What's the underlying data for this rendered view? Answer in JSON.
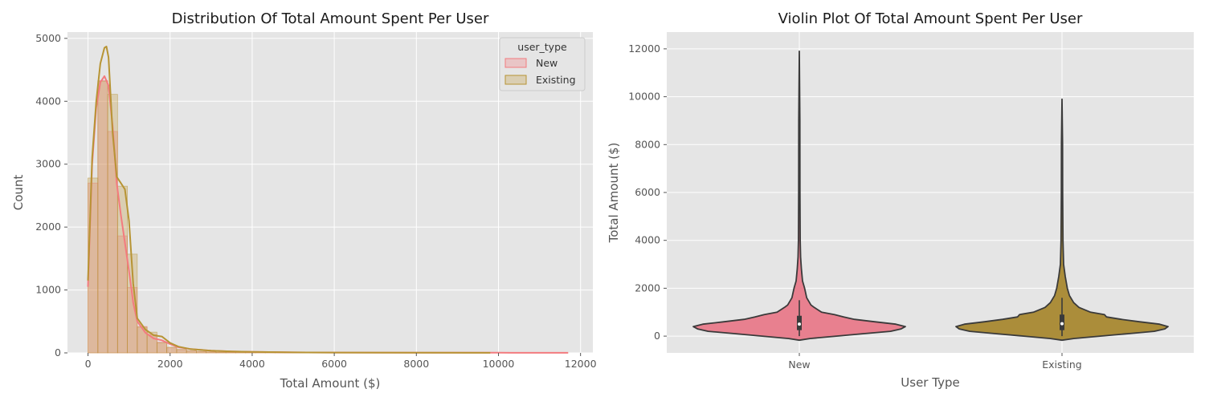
{
  "chart_data": [
    {
      "type": "histogram",
      "title": "Distribution Of Total Amount Spent Per User",
      "xlabel": "Total Amount ($)",
      "ylabel": "Count",
      "xlim": [
        -500,
        12300
      ],
      "ylim": [
        0,
        5100
      ],
      "xticks": [
        0,
        2000,
        4000,
        6000,
        8000,
        10000,
        12000
      ],
      "yticks": [
        0,
        1000,
        2000,
        3000,
        4000,
        5000
      ],
      "grid": true,
      "legend": {
        "title": "user_type",
        "position": "top-right",
        "entries": [
          "New",
          "Existing"
        ]
      },
      "bin_width": 240,
      "series": [
        {
          "name": "New",
          "color": "#f37b7f",
          "hist": [
            2700,
            4330,
            3520,
            1860,
            1040,
            420,
            290,
            170,
            80,
            50,
            30,
            20,
            15,
            10,
            8,
            6,
            5,
            4,
            3,
            3,
            2,
            2
          ],
          "kde": [
            [
              0,
              1050
            ],
            [
              100,
              3000
            ],
            [
              200,
              3900
            ],
            [
              300,
              4300
            ],
            [
              400,
              4400
            ],
            [
              500,
              4250
            ],
            [
              600,
              3600
            ],
            [
              700,
              2700
            ],
            [
              800,
              2200
            ],
            [
              900,
              1750
            ],
            [
              1000,
              1300
            ],
            [
              1100,
              800
            ],
            [
              1200,
              500
            ],
            [
              1400,
              320
            ],
            [
              1600,
              230
            ],
            [
              1800,
              200
            ],
            [
              2000,
              140
            ],
            [
              2200,
              90
            ],
            [
              2500,
              60
            ],
            [
              3000,
              35
            ],
            [
              3500,
              22
            ],
            [
              4000,
              15
            ],
            [
              5000,
              8
            ],
            [
              6000,
              5
            ],
            [
              8000,
              3
            ],
            [
              10000,
              2
            ],
            [
              11700,
              1
            ]
          ]
        },
        {
          "name": "Existing",
          "color": "#b79434",
          "hist": [
            2780,
            4320,
            4110,
            2650,
            1570,
            410,
            330,
            160,
            90,
            55,
            35,
            22,
            15,
            10,
            8,
            6,
            5,
            4,
            3,
            2,
            2,
            1
          ],
          "kde": [
            [
              0,
              1150
            ],
            [
              100,
              3100
            ],
            [
              200,
              4000
            ],
            [
              300,
              4600
            ],
            [
              400,
              4850
            ],
            [
              450,
              4870
            ],
            [
              500,
              4700
            ],
            [
              600,
              3500
            ],
            [
              700,
              2800
            ],
            [
              800,
              2700
            ],
            [
              900,
              2600
            ],
            [
              1000,
              2100
            ],
            [
              1100,
              1100
            ],
            [
              1200,
              550
            ],
            [
              1400,
              370
            ],
            [
              1600,
              280
            ],
            [
              1800,
              260
            ],
            [
              2000,
              160
            ],
            [
              2200,
              100
            ],
            [
              2500,
              60
            ],
            [
              3000,
              35
            ],
            [
              3500,
              22
            ],
            [
              4000,
              15
            ],
            [
              5000,
              8
            ],
            [
              6000,
              5
            ],
            [
              8000,
              3
            ],
            [
              9800,
              1
            ]
          ]
        }
      ]
    },
    {
      "type": "violin",
      "title": "Violin Plot Of Total Amount Spent Per User",
      "xlabel": "User Type",
      "ylabel": "Total Amount ($)",
      "categories": [
        "New",
        "Existing"
      ],
      "ylim": [
        -700,
        12700
      ],
      "yticks": [
        0,
        2000,
        4000,
        6000,
        8000,
        10000,
        12000
      ],
      "grid": true,
      "series": [
        {
          "name": "New",
          "color": "#e8808f",
          "profile": [
            [
              -170,
              0.0
            ],
            [
              -100,
              0.1
            ],
            [
              0,
              0.35
            ],
            [
              100,
              0.6
            ],
            [
              200,
              0.86
            ],
            [
              300,
              0.96
            ],
            [
              400,
              1.0
            ],
            [
              500,
              0.91
            ],
            [
              600,
              0.71
            ],
            [
              700,
              0.52
            ],
            [
              800,
              0.42
            ],
            [
              900,
              0.33
            ],
            [
              1000,
              0.21
            ],
            [
              1200,
              0.14
            ],
            [
              1300,
              0.11
            ],
            [
              1600,
              0.07
            ],
            [
              2000,
              0.05
            ],
            [
              2300,
              0.03
            ],
            [
              2800,
              0.02
            ],
            [
              3300,
              0.012
            ],
            [
              4000,
              0.008
            ],
            [
              6000,
              0.006
            ],
            [
              9000,
              0.005
            ],
            [
              11900,
              0.0
            ]
          ],
          "box": {
            "q1": 250,
            "median": 500,
            "q3": 850,
            "whisker_low": 0,
            "whisker_high": 1500
          }
        },
        {
          "name": "Existing",
          "color": "#ab8d3a",
          "profile": [
            [
              -170,
              0.0
            ],
            [
              -100,
              0.11
            ],
            [
              0,
              0.36
            ],
            [
              100,
              0.62
            ],
            [
              200,
              0.87
            ],
            [
              300,
              0.97
            ],
            [
              400,
              1.0
            ],
            [
              500,
              0.92
            ],
            [
              600,
              0.73
            ],
            [
              700,
              0.56
            ],
            [
              800,
              0.42
            ],
            [
              900,
              0.4
            ],
            [
              1000,
              0.27
            ],
            [
              1200,
              0.16
            ],
            [
              1400,
              0.11
            ],
            [
              1700,
              0.07
            ],
            [
              2000,
              0.05
            ],
            [
              2500,
              0.03
            ],
            [
              3000,
              0.015
            ],
            [
              4000,
              0.009
            ],
            [
              6000,
              0.006
            ],
            [
              8000,
              0.005
            ],
            [
              9900,
              0.0
            ]
          ],
          "box": {
            "q1": 250,
            "median": 520,
            "q3": 900,
            "whisker_low": 0,
            "whisker_high": 1600
          }
        }
      ]
    }
  ]
}
